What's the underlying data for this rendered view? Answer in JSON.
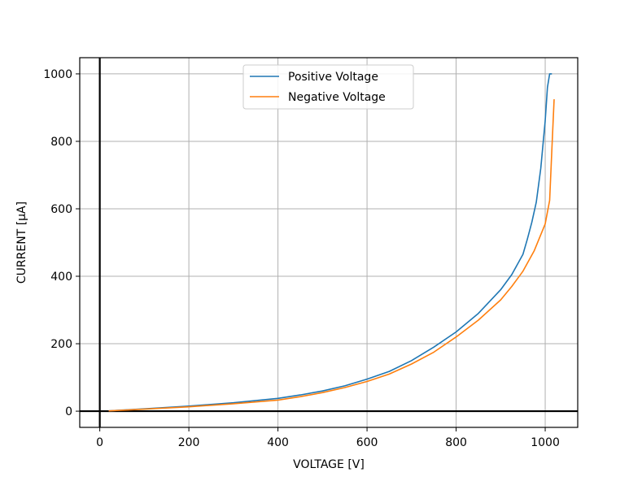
{
  "chart_data": {
    "type": "line",
    "xlabel": "VOLTAGE [V]",
    "ylabel": "CURRENT [µA]",
    "xlim": [
      -45,
      1073
    ],
    "ylim": [
      -48,
      1048
    ],
    "xticks": [
      0,
      200,
      400,
      600,
      800,
      1000
    ],
    "yticks": [
      0,
      200,
      400,
      600,
      800,
      1000
    ],
    "grid": true,
    "zero_lines": true,
    "legend_position": "upper center",
    "series": [
      {
        "name": "Positive Voltage",
        "color": "#1f77b4",
        "x": [
          20,
          100,
          200,
          300,
          400,
          450,
          500,
          550,
          600,
          650,
          700,
          750,
          800,
          850,
          900,
          925,
          950,
          960,
          970,
          980,
          990,
          1000,
          1005,
          1010,
          1015
        ],
        "y": [
          1,
          7,
          15,
          25,
          38,
          48,
          60,
          75,
          95,
          118,
          150,
          190,
          235,
          290,
          360,
          405,
          465,
          510,
          560,
          620,
          720,
          860,
          960,
          1000,
          1000
        ]
      },
      {
        "name": "Negative Voltage",
        "color": "#ff7f0e",
        "x": [
          20,
          100,
          200,
          300,
          400,
          450,
          500,
          550,
          600,
          650,
          700,
          750,
          800,
          850,
          900,
          925,
          950,
          975,
          1000,
          1010,
          1015,
          1020
        ],
        "y": [
          1,
          6,
          13,
          22,
          33,
          43,
          55,
          70,
          88,
          110,
          140,
          175,
          220,
          270,
          330,
          370,
          415,
          475,
          555,
          625,
          780,
          925
        ]
      }
    ]
  }
}
